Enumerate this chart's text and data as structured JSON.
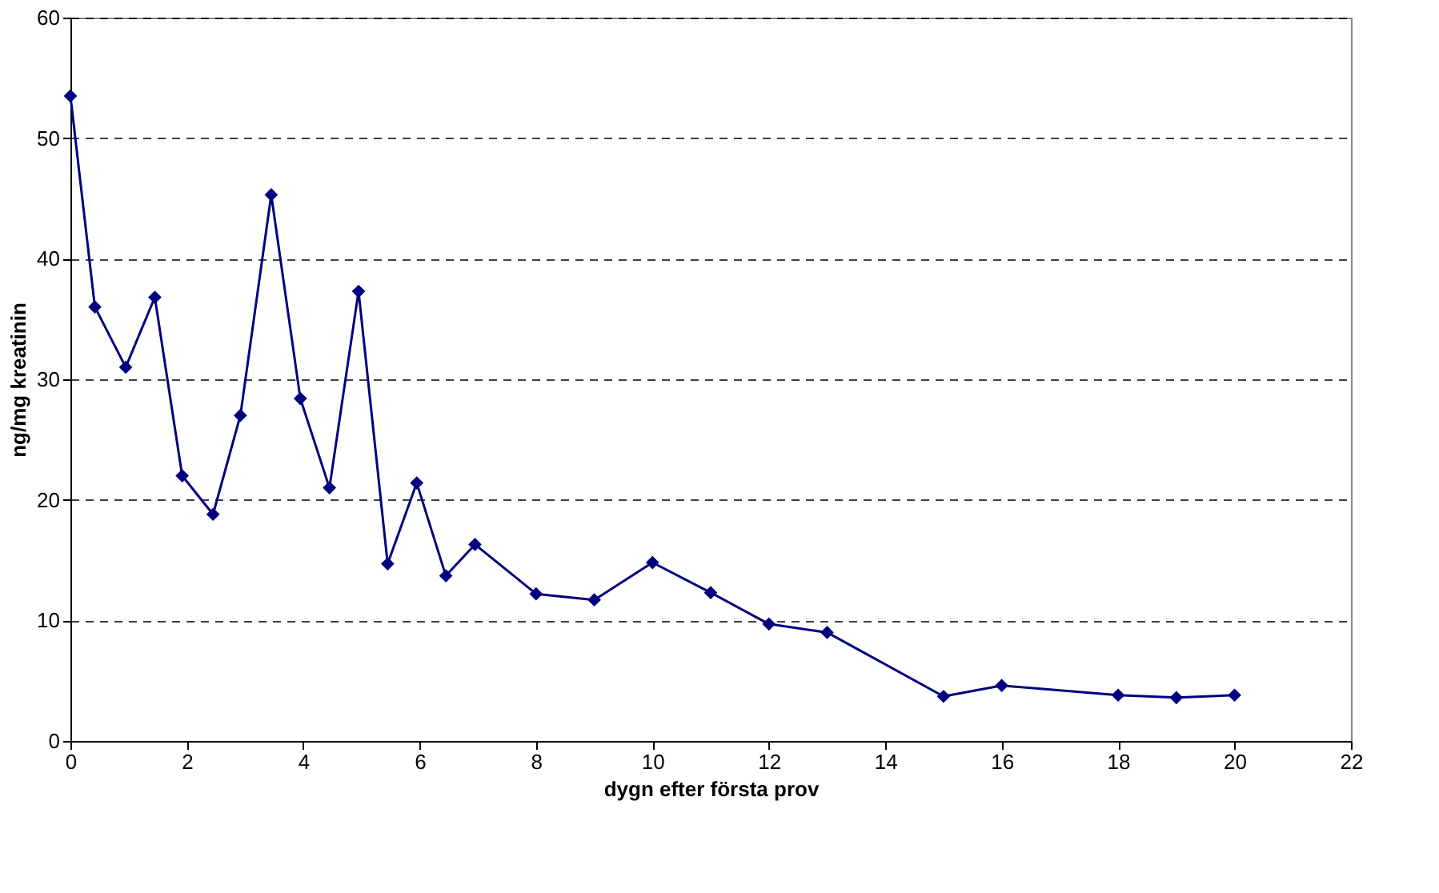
{
  "chart_data": {
    "type": "line",
    "xlabel": "dygn efter första prov",
    "ylabel": "ng/mg kreatinin",
    "x": [
      0,
      0.42,
      0.95,
      1.45,
      1.92,
      2.45,
      2.92,
      3.45,
      3.95,
      4.45,
      4.95,
      5.45,
      5.95,
      6.45,
      6.95,
      8,
      9,
      10,
      11,
      12,
      13,
      15,
      16,
      18,
      19,
      20
    ],
    "series": [
      {
        "color": "#000080",
        "values": [
          53.5,
          36,
          31,
          36.8,
          22,
          18.8,
          27,
          45.3,
          28.4,
          21,
          37.3,
          14.7,
          21.4,
          13.7,
          16.3,
          12.2,
          11.7,
          14.8,
          12.3,
          9.7,
          9,
          3.7,
          4.6,
          3.8,
          3.6,
          3.8
        ]
      }
    ],
    "xlim": [
      0,
      22
    ],
    "xticks": [
      0,
      2,
      4,
      6,
      8,
      10,
      12,
      14,
      16,
      18,
      20,
      22
    ],
    "ylim": [
      0,
      60
    ],
    "yticks": [
      0,
      10,
      20,
      30,
      40,
      50,
      60
    ],
    "grid": "y",
    "marker": "diamond",
    "line_style": "solid"
  }
}
